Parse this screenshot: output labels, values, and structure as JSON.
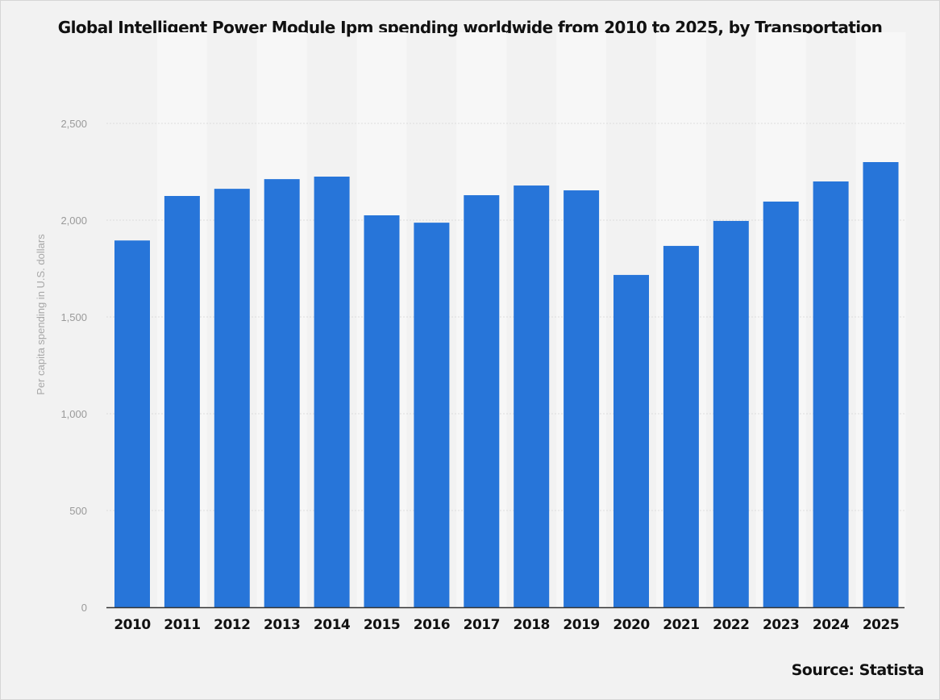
{
  "chart_data": {
    "type": "bar",
    "title": "Global Intelligent Power Module Ipm spending worldwide from 2010 to 2025, by Transportation",
    "xlabel": "",
    "ylabel": "Per capita spending in U.S. dollars",
    "categories": [
      "2010",
      "2011",
      "2012",
      "2013",
      "2014",
      "2015",
      "2016",
      "2017",
      "2018",
      "2019",
      "2020",
      "2021",
      "2022",
      "2023",
      "2024",
      "2025"
    ],
    "values": [
      1895,
      2125,
      2162,
      2212,
      2225,
      2025,
      1987,
      2129,
      2179,
      2154,
      1717,
      1867,
      1996,
      2096,
      2200,
      2300
    ],
    "ylim": [
      0,
      2500
    ],
    "yticks": [
      0,
      500,
      1000,
      1500,
      2000,
      2500
    ],
    "ytick_labels": [
      "0",
      "500",
      "1,000",
      "1,500",
      "2,000",
      "2,500"
    ],
    "grid": true,
    "legend": "none",
    "bar_color": "#2775d9",
    "source": "Source: Statista"
  }
}
